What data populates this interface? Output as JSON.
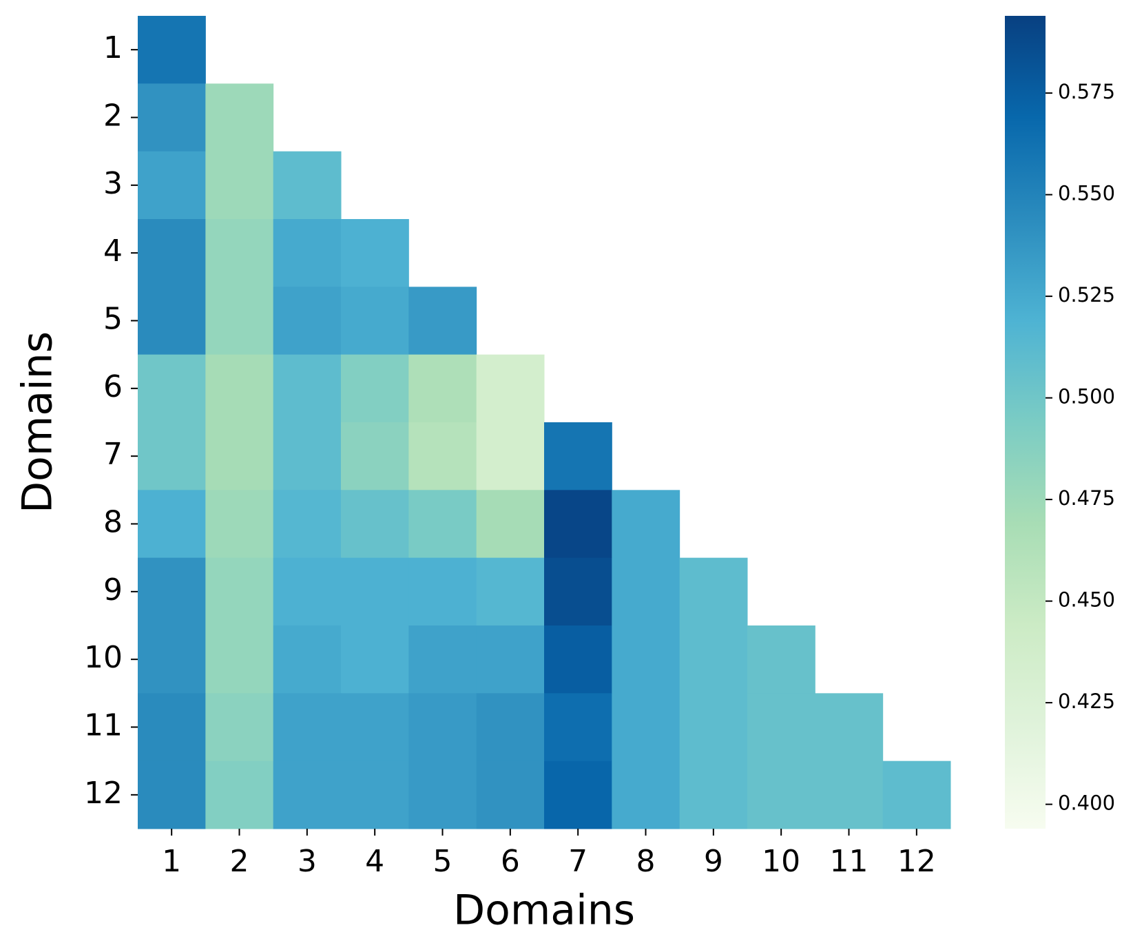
{
  "chart_data": {
    "type": "heatmap",
    "cmap": "GnBu",
    "xlabel": "Domains",
    "ylabel": "Domains",
    "x": [
      1,
      2,
      3,
      4,
      5,
      6,
      7,
      8,
      9,
      10,
      11,
      12
    ],
    "y": [
      1,
      2,
      3,
      4,
      5,
      6,
      7,
      8,
      9,
      10,
      11,
      12
    ],
    "values": [
      [
        0.56,
        null,
        null,
        null,
        null,
        null,
        null,
        null,
        null,
        null,
        null,
        null
      ],
      [
        0.54,
        0.475,
        null,
        null,
        null,
        null,
        null,
        null,
        null,
        null,
        null,
        null
      ],
      [
        0.53,
        0.475,
        0.51,
        null,
        null,
        null,
        null,
        null,
        null,
        null,
        null,
        null
      ],
      [
        0.545,
        0.48,
        0.525,
        0.52,
        null,
        null,
        null,
        null,
        null,
        null,
        null,
        null
      ],
      [
        0.545,
        0.48,
        0.53,
        0.525,
        0.535,
        null,
        null,
        null,
        null,
        null,
        null,
        null
      ],
      [
        0.5,
        0.47,
        0.51,
        0.49,
        0.465,
        0.435,
        null,
        null,
        null,
        null,
        null,
        null
      ],
      [
        0.5,
        0.47,
        0.51,
        0.485,
        0.46,
        0.435,
        0.56,
        null,
        null,
        null,
        null,
        null
      ],
      [
        0.52,
        0.475,
        0.515,
        0.505,
        0.495,
        0.47,
        0.59,
        0.525,
        null,
        null,
        null,
        null
      ],
      [
        0.54,
        0.48,
        0.52,
        0.52,
        0.52,
        0.515,
        0.585,
        0.525,
        0.51,
        null,
        null,
        null
      ],
      [
        0.54,
        0.48,
        0.525,
        0.52,
        0.53,
        0.53,
        0.575,
        0.525,
        0.51,
        0.505,
        null,
        null
      ],
      [
        0.545,
        0.485,
        0.53,
        0.53,
        0.535,
        0.54,
        0.565,
        0.525,
        0.51,
        0.505,
        0.505,
        null
      ],
      [
        0.545,
        0.49,
        0.53,
        0.53,
        0.535,
        0.54,
        0.57,
        0.525,
        0.51,
        0.505,
        0.505,
        0.51
      ]
    ],
    "clim": [
      0.394,
      0.594
    ],
    "cticks": [
      {
        "value": 0.4,
        "label": "0.400"
      },
      0.425,
      {
        "value": 0.45,
        "label": "0.450"
      },
      0.475,
      {
        "value": 0.5,
        "label": "0.500"
      },
      0.525,
      {
        "value": 0.55,
        "label": "0.550"
      },
      0.575
    ]
  }
}
